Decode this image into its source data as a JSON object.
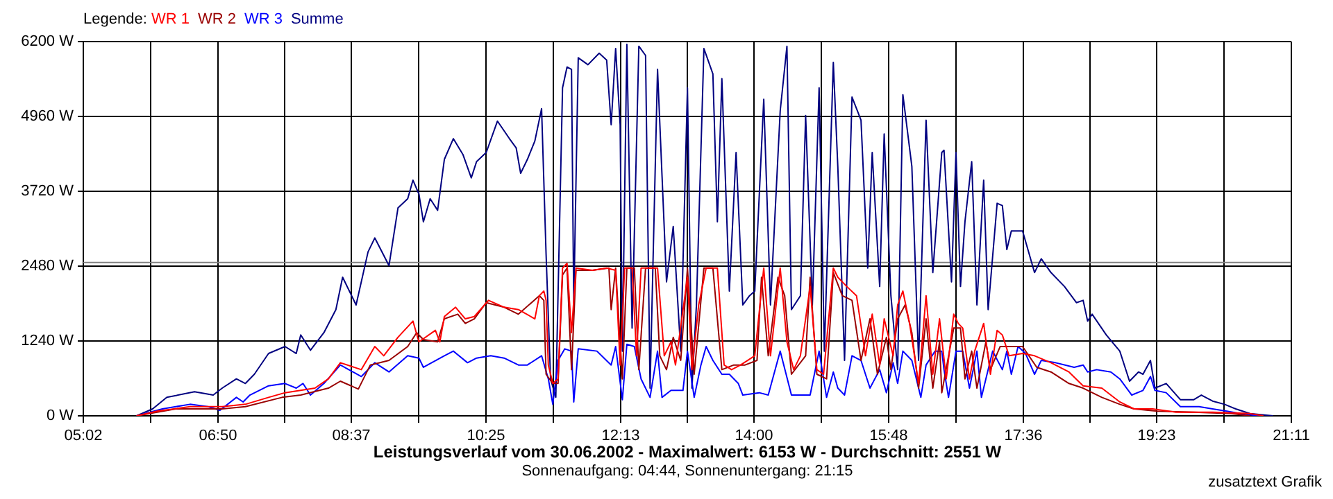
{
  "chart_data": {
    "type": "line",
    "title": "Leistungsverlauf vom 30.06.2002 - Maximalwert: 6153 W - Durchschnitt: 2551 W",
    "subtitle": "Sonnenaufgang: 04:44, Sonnenuntergang: 21:15",
    "legend_title": "Legende:",
    "annotations": [
      "zusatztext Grafik"
    ],
    "legend": "top left",
    "grid": true,
    "marker": "none",
    "xlim": [
      5.0333,
      21.1833
    ],
    "xticks": [
      {
        "value": 5.0333,
        "label": "05:02"
      },
      {
        "value": 5.9333,
        "label": null
      },
      {
        "value": 6.8333,
        "label": "06:50"
      },
      {
        "value": 7.725,
        "label": null
      },
      {
        "value": 8.6167,
        "label": "08:37"
      },
      {
        "value": 9.5167,
        "label": null
      },
      {
        "value": 10.4167,
        "label": "10:25"
      },
      {
        "value": 11.3167,
        "label": null
      },
      {
        "value": 12.2167,
        "label": "12:13"
      },
      {
        "value": 13.1083,
        "label": null
      },
      {
        "value": 14,
        "label": "14:00"
      },
      {
        "value": 14.9,
        "label": null
      },
      {
        "value": 15.8,
        "label": "15:48"
      },
      {
        "value": 16.7,
        "label": null
      },
      {
        "value": 17.6,
        "label": "17:36"
      },
      {
        "value": 18.4917,
        "label": null
      },
      {
        "value": 19.3833,
        "label": "19:23"
      },
      {
        "value": 20.2833,
        "label": null
      },
      {
        "value": 21.1833,
        "label": "21:11"
      }
    ],
    "ylim": [
      0,
      6200
    ],
    "yticks": [
      {
        "value": 0,
        "label": "0 W"
      },
      {
        "value": 1240,
        "label": "1240 W"
      },
      {
        "value": 2480,
        "label": "2480 W"
      },
      {
        "value": 3720,
        "label": "3720 W"
      },
      {
        "value": 4960,
        "label": "4960 W"
      },
      {
        "value": 6200,
        "label": "6200 W"
      }
    ],
    "ref_lines": [
      {
        "axis": "y",
        "value": 2540,
        "color": "#808080"
      }
    ],
    "series": [
      {
        "name": "WR 1",
        "color": "#ff0000",
        "x": [
          5.745,
          6.02,
          6.46,
          6.89,
          7.2,
          7.51,
          7.73,
          8.13,
          8.31,
          8.47,
          8.75,
          8.93,
          9.05,
          9.24,
          9.44,
          9.52,
          9.74,
          9.8,
          9.86,
          10.01,
          10.14,
          10.26,
          10.45,
          10.66,
          10.85,
          11.07,
          11.13,
          11.19,
          11.22,
          11.25,
          11.31,
          11.38,
          11.44,
          11.5,
          11.56,
          11.62,
          11.84,
          12.03,
          12.15,
          12.21,
          12.27,
          12.37,
          12.43,
          12.49,
          12.71,
          12.8,
          12.89,
          12.95,
          13.11,
          13.17,
          13.26,
          13.36,
          13.51,
          13.6,
          13.7,
          13.82,
          14.01,
          14.13,
          14.22,
          14.35,
          14.44,
          14.53,
          14.62,
          14.75,
          14.84,
          14.93,
          15.06,
          15.12,
          15.24,
          15.37,
          15.49,
          15.58,
          15.68,
          15.74,
          15.86,
          15.92,
          15.99,
          16.08,
          16.2,
          16.3,
          16.39,
          16.48,
          16.57,
          16.67,
          16.73,
          16.79,
          16.88,
          16.95,
          17.07,
          17.16,
          17.25,
          17.32,
          17.41,
          17.59,
          17.75,
          17.97,
          18.21,
          18.4,
          18.65,
          18.89,
          19.08,
          19.33,
          19.64,
          20.13,
          20.63,
          20.81
        ],
        "values": [
          0,
          77,
          153,
          153,
          191,
          306,
          383,
          459,
          612,
          880,
          765,
          1148,
          995,
          1301,
          1569,
          1225,
          1416,
          1225,
          1645,
          1799,
          1607,
          1645,
          1913,
          1799,
          1760,
          1607,
          1990,
          2067,
          1913,
          842,
          536,
          612,
          2449,
          2526,
          1378,
          2449,
          2411,
          2449,
          2411,
          842,
          2449,
          2449,
          995,
          2449,
          2449,
          995,
          1225,
          842,
          2296,
          765,
          1837,
          2449,
          2449,
          842,
          765,
          842,
          995,
          2449,
          995,
          2449,
          1225,
          765,
          995,
          2143,
          765,
          689,
          2449,
          2296,
          2143,
          1990,
          995,
          1684,
          842,
          1607,
          995,
          1837,
          2067,
          1531,
          536,
          1990,
          689,
          1607,
          612,
          1684,
          1531,
          1454,
          612,
          1072,
          1531,
          689,
          1416,
          1339,
          995,
          1033,
          995,
          880,
          727,
          497,
          459,
          230,
          115,
          115,
          61,
          61,
          38,
          0
        ]
      },
      {
        "name": "WR 2",
        "color": "#990000",
        "x": [
          5.745,
          6.27,
          6.89,
          7.2,
          7.69,
          7.94,
          8.31,
          8.47,
          8.71,
          8.87,
          9.12,
          9.37,
          9.49,
          9.58,
          9.77,
          9.86,
          10.04,
          10.14,
          10.26,
          10.42,
          10.66,
          10.85,
          11.13,
          11.19,
          11.22,
          11.31,
          11.38,
          11.44,
          11.5,
          11.56,
          11.62,
          11.84,
          12.06,
          12.09,
          12.15,
          12.24,
          12.3,
          12.4,
          12.46,
          12.55,
          12.68,
          12.74,
          12.83,
          12.92,
          13.02,
          13.11,
          13.2,
          13.33,
          13.45,
          13.57,
          13.73,
          13.88,
          14.04,
          14.1,
          14.19,
          14.32,
          14.41,
          14.5,
          14.69,
          14.75,
          14.84,
          14.97,
          15.06,
          15.18,
          15.31,
          15.43,
          15.55,
          15.65,
          15.77,
          15.83,
          15.92,
          16.02,
          16.11,
          16.2,
          16.3,
          16.39,
          16.48,
          16.51,
          16.67,
          16.76,
          16.82,
          16.91,
          16.98,
          17.1,
          17.16,
          17.29,
          17.41,
          17.59,
          17.78,
          17.97,
          18.21,
          18.4,
          18.65,
          18.89,
          19.08,
          19.39,
          19.88,
          20.38,
          20.63
        ],
        "values": [
          0,
          115,
          115,
          153,
          306,
          344,
          459,
          574,
          444,
          842,
          918,
          1148,
          1378,
          1263,
          1225,
          1607,
          1684,
          1531,
          1607,
          1875,
          1799,
          1684,
          1990,
          1913,
          689,
          536,
          536,
          2334,
          2449,
          765,
          2411,
          2411,
          2449,
          1760,
          2449,
          612,
          2449,
          2449,
          765,
          2449,
          2449,
          995,
          765,
          1301,
          918,
          2449,
          689,
          2449,
          2449,
          765,
          842,
          842,
          918,
          2296,
          995,
          2296,
          1990,
          689,
          995,
          2296,
          689,
          612,
          2373,
          1990,
          1913,
          918,
          1607,
          689,
          1301,
          765,
          1607,
          1837,
          1378,
          459,
          1607,
          459,
          1225,
          383,
          1454,
          1454,
          612,
          1072,
          459,
          1225,
          765,
          1148,
          1148,
          1148,
          804,
          727,
          536,
          459,
          306,
          191,
          115,
          77,
          61,
          38,
          0
        ]
      },
      {
        "name": "WR 3",
        "color": "#0000ff",
        "x": [
          5.745,
          6.09,
          6.46,
          6.7,
          6.86,
          7.08,
          7.17,
          7.26,
          7.51,
          7.73,
          7.88,
          7.97,
          8.07,
          8.25,
          8.47,
          8.75,
          8.93,
          9.12,
          9.37,
          9.52,
          9.58,
          9.86,
          9.98,
          10.17,
          10.29,
          10.48,
          10.66,
          10.85,
          10.97,
          11.16,
          11.25,
          11.31,
          11.38,
          11.47,
          11.56,
          11.59,
          11.65,
          11.9,
          12.09,
          12.15,
          12.24,
          12.3,
          12.4,
          12.49,
          12.61,
          12.71,
          12.77,
          12.89,
          13.05,
          13.11,
          13.2,
          13.29,
          13.36,
          13.45,
          13.57,
          13.67,
          13.79,
          13.85,
          14.07,
          14.19,
          14.35,
          14.5,
          14.75,
          14.87,
          14.97,
          15.06,
          15.12,
          15.21,
          15.31,
          15.43,
          15.55,
          15.68,
          15.77,
          15.86,
          15.92,
          15.99,
          16.11,
          16.23,
          16.3,
          16.42,
          16.51,
          16.54,
          16.6,
          16.7,
          16.79,
          16.88,
          16.98,
          17.04,
          17.19,
          17.32,
          17.38,
          17.44,
          17.53,
          17.63,
          17.75,
          17.84,
          18.03,
          18.28,
          18.4,
          18.46,
          18.58,
          18.77,
          18.89,
          19.05,
          19.2,
          19.3,
          19.36,
          19.51,
          19.7,
          19.95,
          20.13,
          20.32,
          20.5,
          20.75
        ],
        "values": [
          0,
          115,
          191,
          153,
          92,
          306,
          230,
          344,
          497,
          536,
          459,
          536,
          344,
          536,
          842,
          651,
          880,
          727,
          995,
          957,
          804,
          995,
          1072,
          880,
          957,
          995,
          957,
          842,
          842,
          995,
          612,
          191,
          918,
          1110,
          1072,
          230,
          1110,
          1072,
          842,
          1148,
          268,
          1186,
          1148,
          612,
          306,
          1072,
          306,
          421,
          421,
          1072,
          306,
          842,
          1148,
          918,
          689,
          689,
          536,
          344,
          383,
          344,
          1072,
          344,
          344,
          1072,
          306,
          727,
          459,
          344,
          995,
          918,
          459,
          765,
          383,
          880,
          536,
          1072,
          918,
          306,
          842,
          1072,
          1072,
          765,
          306,
          1072,
          1072,
          459,
          1072,
          306,
          1072,
          765,
          1072,
          689,
          1148,
          1033,
          689,
          918,
          880,
          804,
          842,
          727,
          765,
          727,
          612,
          344,
          421,
          651,
          421,
          383,
          153,
          153,
          115,
          77,
          38,
          0
        ]
      },
      {
        "name": "Summe",
        "color": "#000080",
        "x": [
          5.745,
          5.96,
          6.15,
          6.52,
          6.77,
          6.89,
          7.08,
          7.2,
          7.32,
          7.51,
          7.73,
          7.88,
          7.94,
          8.07,
          8.25,
          8.41,
          8.5,
          8.68,
          8.84,
          8.93,
          9.12,
          9.24,
          9.37,
          9.44,
          9.52,
          9.58,
          9.67,
          9.77,
          9.86,
          9.98,
          10.11,
          10.22,
          10.29,
          10.42,
          10.57,
          10.73,
          10.82,
          10.88,
          10.97,
          11.07,
          11.16,
          11.22,
          11.28,
          11.35,
          11.44,
          11.5,
          11.56,
          11.59,
          11.65,
          11.78,
          11.93,
          12.03,
          12.09,
          12.15,
          12.21,
          12.24,
          12.3,
          12.37,
          12.46,
          12.55,
          12.61,
          12.71,
          12.83,
          12.92,
          13.02,
          13.11,
          13.17,
          13.23,
          13.33,
          13.45,
          13.51,
          13.57,
          13.67,
          13.76,
          13.85,
          13.94,
          14.01,
          14.13,
          14.22,
          14.35,
          14.44,
          14.5,
          14.62,
          14.69,
          14.78,
          14.87,
          14.94,
          15.06,
          15.12,
          15.21,
          15.31,
          15.37,
          15.43,
          15.52,
          15.58,
          15.68,
          15.74,
          15.83,
          15.92,
          15.99,
          16.11,
          16.2,
          16.3,
          16.39,
          16.51,
          16.54,
          16.64,
          16.7,
          16.76,
          16.82,
          16.91,
          16.98,
          17.07,
          17.13,
          17.25,
          17.32,
          17.38,
          17.44,
          17.59,
          17.75,
          17.84,
          17.97,
          18.15,
          18.31,
          18.4,
          18.46,
          18.52,
          18.71,
          18.89,
          19.02,
          19.14,
          19.2,
          19.3,
          19.36,
          19.51,
          19.7,
          19.88,
          19.98,
          20.13,
          20.29,
          20.44,
          20.63,
          20.94
        ],
        "values": [
          0,
          115,
          306,
          398,
          344,
          459,
          612,
          536,
          689,
          1033,
          1148,
          1033,
          1340,
          1087,
          1378,
          1760,
          2296,
          1837,
          2717,
          2947,
          2488,
          3444,
          3597,
          3904,
          3674,
          3215,
          3597,
          3406,
          4248,
          4592,
          4325,
          3942,
          4210,
          4363,
          4883,
          4592,
          4440,
          4018,
          4248,
          4554,
          5090,
          2679,
          612,
          306,
          5434,
          5779,
          5740,
          1837,
          5932,
          5817,
          6008,
          5893,
          4822,
          6085,
          4822,
          1072,
          6153,
          1454,
          6123,
          5970,
          459,
          5740,
          2220,
          3138,
          1072,
          5434,
          459,
          1837,
          6085,
          5664,
          3215,
          5587,
          2067,
          4363,
          1837,
          1990,
          2067,
          5243,
          1837,
          5052,
          6123,
          1760,
          1990,
          4975,
          1837,
          5434,
          1072,
          5855,
          4133,
          918,
          5281,
          5090,
          4898,
          2449,
          4363,
          2143,
          4669,
          1990,
          765,
          5320,
          4133,
          918,
          4898,
          2373,
          4363,
          4401,
          2220,
          4363,
          2143,
          3215,
          4210,
          1837,
          3904,
          1760,
          3521,
          3483,
          2755,
          3062,
          3062,
          2373,
          2602,
          2373,
          2143,
          1875,
          1913,
          1569,
          1684,
          1339,
          1072,
          574,
          727,
          689,
          918,
          459,
          536,
          268,
          268,
          344,
          245,
          191,
          115,
          38,
          0
        ]
      }
    ]
  }
}
